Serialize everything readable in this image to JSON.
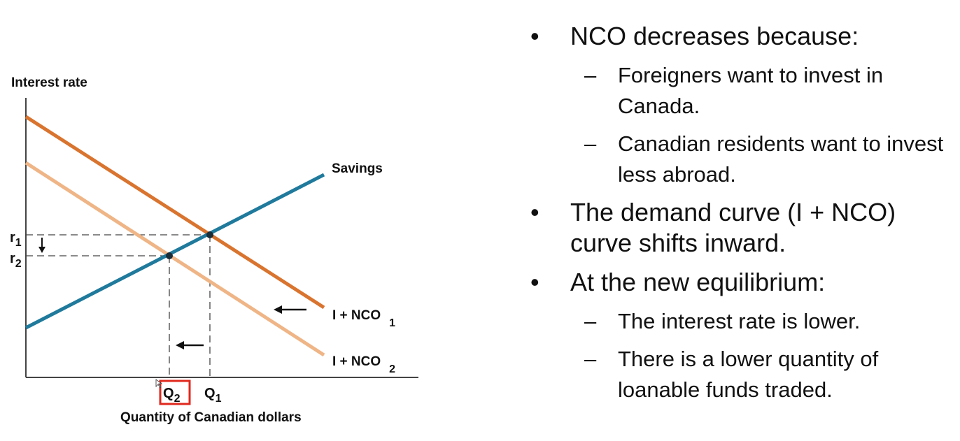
{
  "diagram": {
    "y_axis_label": "Interest rate",
    "x_axis_label": "Quantity of Canadian dollars",
    "savings_label": "Savings",
    "demand1_label": "I + NCO",
    "demand1_sub": "1",
    "demand2_label": "I + NCO",
    "demand2_sub": "2",
    "r1": "r",
    "r1_sub": "1",
    "r2": "r",
    "r2_sub": "2",
    "q1": "Q",
    "q1_sub": "1",
    "q2": "Q",
    "q2_sub": "2",
    "colors": {
      "savings": "#1f7a9c",
      "demand1": "#d9742f",
      "demand2": "#efb586",
      "highlight_box": "#e0281e"
    }
  },
  "bullets": {
    "b1": "NCO decreases because:",
    "b1_sub1": "Foreigners want to invest in Canada.",
    "b1_sub2": "Canadian residents want to invest less abroad.",
    "b2": "The demand curve (I + NCO) curve shifts inward.",
    "b3": "At the new equilibrium:",
    "b3_sub1": "The interest rate is lower.",
    "b3_sub2": "There is a lower quantity of loanable funds traded.",
    "bullet_glyph": "•",
    "dash_glyph": "–"
  }
}
